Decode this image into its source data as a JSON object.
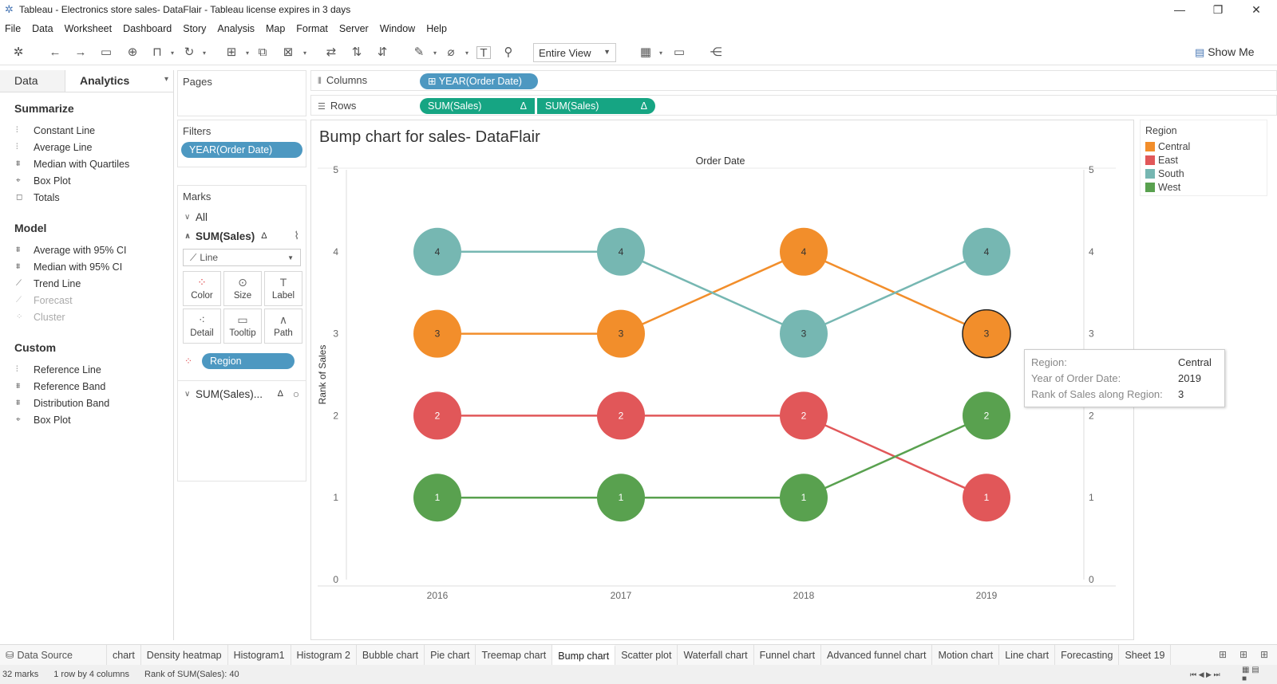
{
  "window": {
    "title": "Tableau - Electronics store sales- DataFlair - Tableau license expires in 3 days",
    "minimize": "—",
    "restore": "❐",
    "close": "✕"
  },
  "menu": [
    "File",
    "Data",
    "Worksheet",
    "Dashboard",
    "Story",
    "Analysis",
    "Map",
    "Format",
    "Server",
    "Window",
    "Help"
  ],
  "toolbar": {
    "fit_value": "Entire View",
    "show_me": "Show Me"
  },
  "left_pane": {
    "tabs": [
      "Data",
      "Analytics"
    ],
    "summarize_title": "Summarize",
    "summarize": [
      "Constant Line",
      "Average Line",
      "Median with Quartiles",
      "Box Plot",
      "Totals"
    ],
    "model_title": "Model",
    "model": [
      "Average with 95% CI",
      "Median with 95% CI",
      "Trend Line",
      "Forecast",
      "Cluster"
    ],
    "custom_title": "Custom",
    "custom": [
      "Reference Line",
      "Reference Band",
      "Distribution Band",
      "Box Plot"
    ]
  },
  "cards": {
    "pages": "Pages",
    "filters": "Filters",
    "filter_pill": "YEAR(Order Date)",
    "marks": "Marks",
    "all": "All",
    "sum_sales": "SUM(Sales)",
    "delta": "Δ",
    "mark_type": "Line",
    "buttons": [
      "Color",
      "Size",
      "Label",
      "Detail",
      "Tooltip",
      "Path"
    ],
    "region_pill": "Region",
    "sum_sales_2": "SUM(Sales)..."
  },
  "shelves": {
    "columns_label": "Columns",
    "rows_label": "Rows",
    "columns_pill": "YEAR(Order Date)",
    "rows_pill_1": "SUM(Sales)",
    "rows_pill_2": "SUM(Sales)",
    "delta": "Δ"
  },
  "legend": {
    "title": "Region",
    "items": [
      {
        "name": "Central",
        "color": "#f28e2b"
      },
      {
        "name": "East",
        "color": "#e15759"
      },
      {
        "name": "South",
        "color": "#76b7b2"
      },
      {
        "name": "West",
        "color": "#59a14f"
      }
    ]
  },
  "chart_data": {
    "type": "line",
    "title": "Bump chart for sales- DataFlair",
    "x_header": "Order Date",
    "ylabel": "Rank of Sales",
    "ylabel_right_fragment": "Ra",
    "categories": [
      "2016",
      "2017",
      "2018",
      "2019"
    ],
    "ylim": [
      0,
      5
    ],
    "yticks": [
      0,
      1,
      2,
      3,
      4,
      5
    ],
    "series": [
      {
        "name": "Central",
        "color": "#f28e2b",
        "values": [
          3,
          3,
          4,
          3
        ]
      },
      {
        "name": "East",
        "color": "#e15759",
        "values": [
          2,
          2,
          2,
          1
        ]
      },
      {
        "name": "South",
        "color": "#76b7b2",
        "values": [
          4,
          4,
          3,
          4
        ]
      },
      {
        "name": "West",
        "color": "#59a14f",
        "values": [
          1,
          1,
          1,
          2
        ]
      }
    ],
    "highlighted": {
      "series": "Central",
      "category": "2019"
    }
  },
  "tooltip": {
    "rows": [
      {
        "label": "Region:",
        "value": "Central"
      },
      {
        "label": "Year of Order Date:",
        "value": "2019"
      },
      {
        "label": "Rank of Sales along Region:",
        "value": "3"
      }
    ]
  },
  "sheet_tabs": {
    "data_source": "Data Source",
    "tabs": [
      "chart",
      "Density heatmap",
      "Histogram1",
      "Histogram 2",
      "Bubble chart",
      "Pie chart",
      "Treemap chart",
      "Bump chart",
      "Scatter plot",
      "Waterfall chart",
      "Funnel chart",
      "Advanced funnel chart",
      "Motion chart",
      "Line chart",
      "Forecasting",
      "Sheet 19"
    ],
    "active": "Bump chart"
  },
  "status": {
    "marks": "32 marks",
    "rows_cols": "1 row by 4 columns",
    "sum": "Rank of SUM(Sales): 40"
  }
}
